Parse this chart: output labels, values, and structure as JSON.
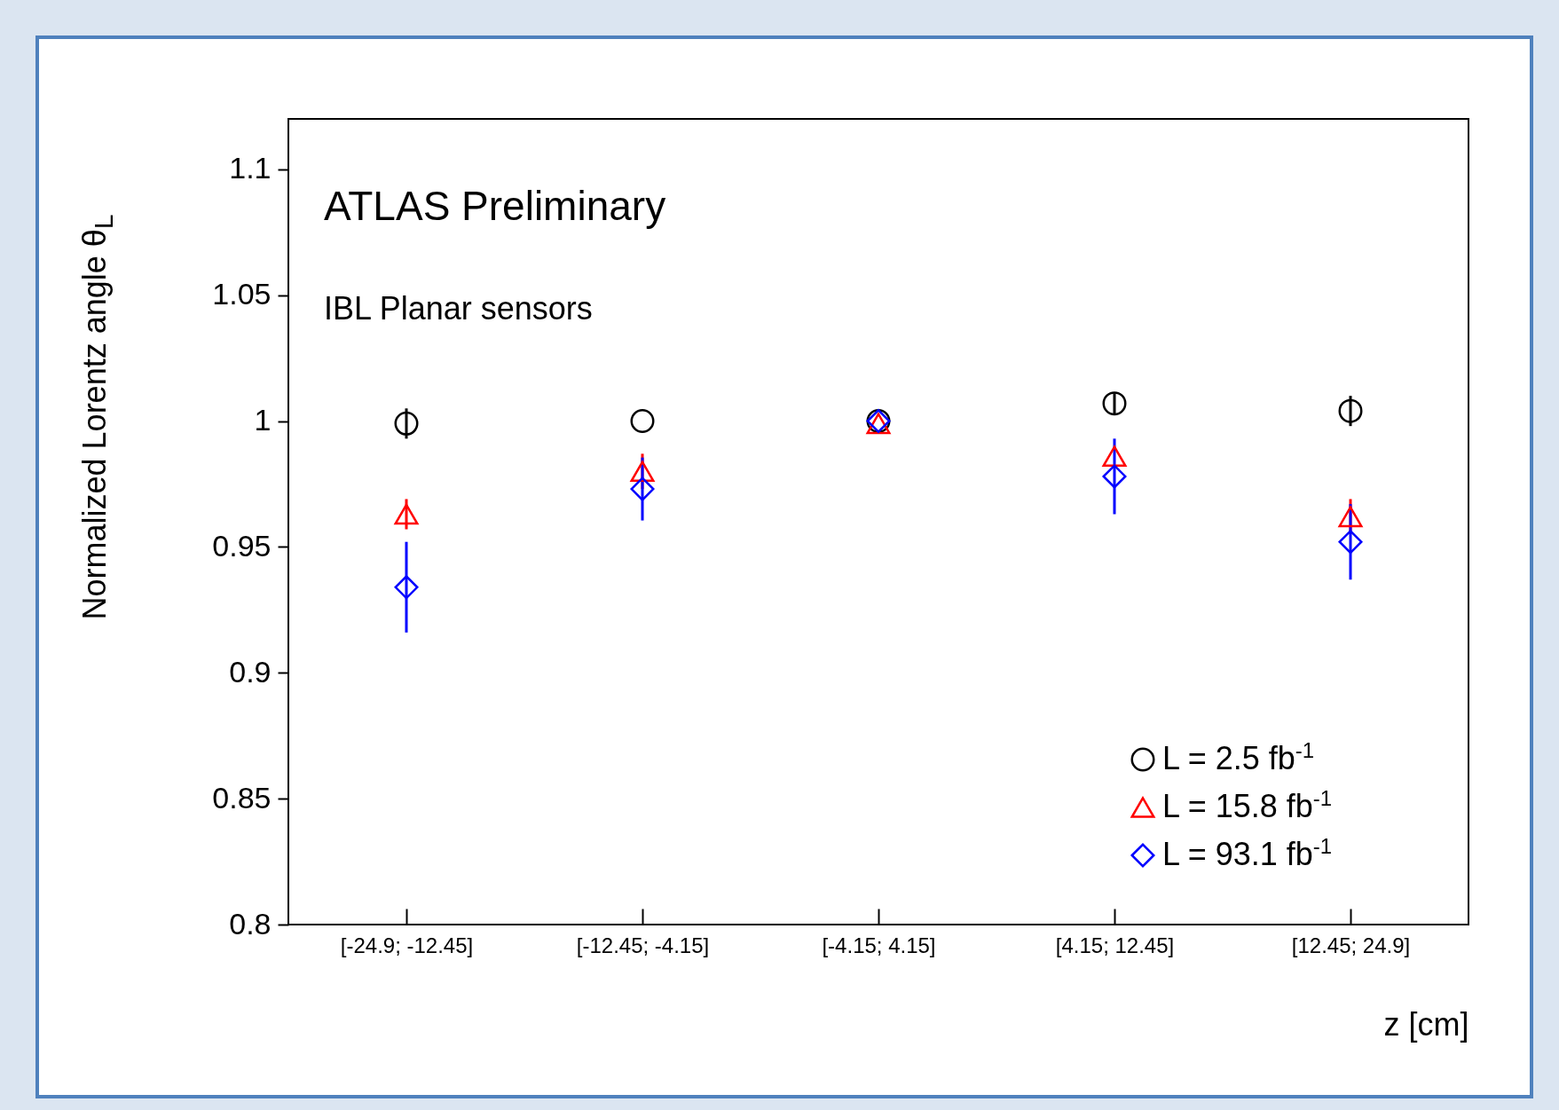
{
  "chart_data": {
    "type": "scatter",
    "xlabel": "z [cm]",
    "ylabel": "Normalized Lorentz angle θ$_{L}$",
    "annotations": [
      "ATLAS Preliminary",
      "IBL Planar sensors"
    ],
    "categories": [
      "[-24.9; -12.45]",
      "[-12.45; -4.15]",
      "[-4.15; 4.15]",
      "[4.15; 12.45]",
      "[12.45; 24.9]"
    ],
    "series": [
      {
        "name": "L = 2.5 fb$^{-1}$",
        "color": "#000000",
        "marker": "circle",
        "values": [
          0.999,
          1.0,
          1.0,
          1.007,
          1.004
        ],
        "errors": [
          0.006,
          null,
          null,
          0.004,
          0.006
        ]
      },
      {
        "name": "L = 15.8 fb$^{-1}$",
        "color": "#ff0000",
        "marker": "triangle",
        "values": [
          0.963,
          0.98,
          0.999,
          0.986,
          0.962
        ],
        "errors": [
          0.006,
          0.007,
          null,
          null,
          0.007
        ]
      },
      {
        "name": "L = 93.1 fb$^{-1}$",
        "color": "#0000ff",
        "marker": "diamond",
        "values": [
          0.934,
          0.973,
          1.0,
          0.978,
          0.952
        ],
        "errors": [
          0.018,
          0.0125,
          null,
          0.015,
          0.015
        ]
      }
    ],
    "ylim": [
      0.8,
      1.12
    ],
    "yticks": [
      0.8,
      0.85,
      0.9,
      0.95,
      1,
      1.05,
      1.1
    ],
    "grid": false,
    "legend": "bottom right"
  }
}
